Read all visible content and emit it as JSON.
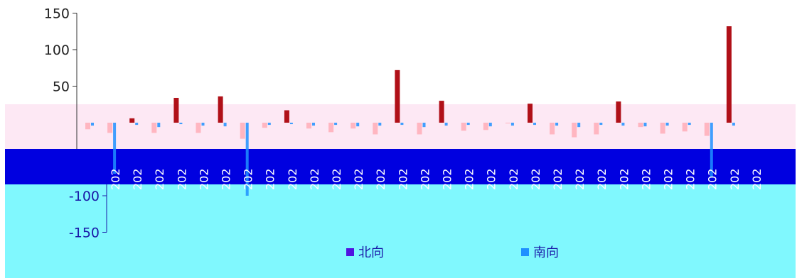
{
  "colors": {
    "north": "#b01018",
    "north_light": "#ffb6c1",
    "south": "#1e90ff",
    "axis_top": "#333333",
    "axis_bottom": "#1a1aa8",
    "legend_north": "#5014e0",
    "legend_south": "#1e90ff"
  },
  "chart_data": {
    "type": "bar",
    "title": "",
    "xlabel": "",
    "ylabel": "",
    "ylim": [
      -150,
      150
    ],
    "yticks": [
      150,
      100,
      50,
      -100,
      -150
    ],
    "xtick_labels": [
      "202",
      "202",
      "202",
      "202",
      "202",
      "202",
      "202",
      "202",
      "202",
      "202",
      "202",
      "202",
      "202",
      "202",
      "202",
      "202",
      "202",
      "202",
      "202",
      "202",
      "202",
      "202",
      "202",
      "202",
      "202",
      "202",
      "202",
      "202",
      "202",
      "202"
    ],
    "series": [
      {
        "name": "北向",
        "values": [
          -9,
          -14,
          6,
          -14,
          34,
          -14,
          36,
          -22,
          -7,
          17,
          -8,
          -13,
          -8,
          -16,
          72,
          -16,
          30,
          -11,
          -10,
          -1,
          26,
          -16,
          -20,
          -16,
          29,
          -6,
          -15,
          -12,
          -18,
          132
        ]
      },
      {
        "name": "南向",
        "values": [
          -4,
          -70,
          -3,
          -6,
          -2,
          -4,
          -5,
          -100,
          -3,
          -2,
          -4,
          -3,
          -5,
          -4,
          -3,
          -6,
          -4,
          -3,
          -5,
          -4,
          -3,
          -4,
          -6,
          -3,
          -4,
          -5,
          -4,
          -3,
          -75,
          -4
        ]
      }
    ],
    "legend": [
      "北向",
      "南向"
    ],
    "legend_position": "bottom"
  }
}
